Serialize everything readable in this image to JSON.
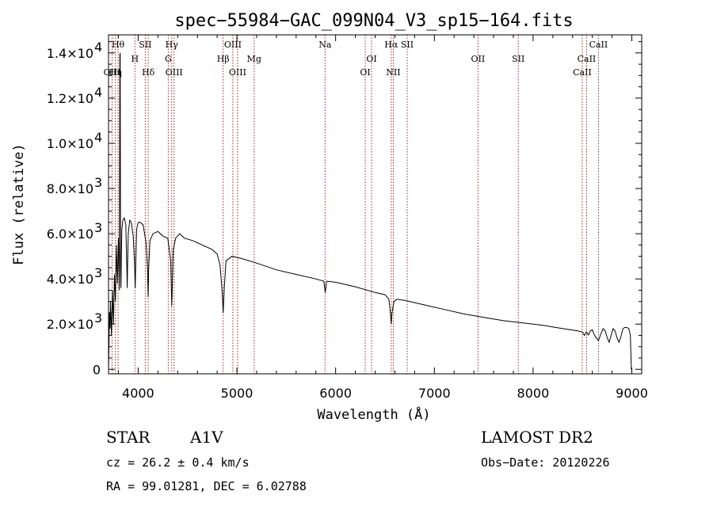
{
  "chart_data": {
    "type": "line",
    "title": "spec−55984−GAC_099N04_V3_sp15−164.fits",
    "xlabel": "Wavelength (Å)",
    "ylabel": "Flux (relative)",
    "xlim": [
      3700,
      9100
    ],
    "ylim": [
      -200,
      14800
    ],
    "x_ticks": [
      {
        "value": 4000,
        "label": "4000"
      },
      {
        "value": 5000,
        "label": "5000"
      },
      {
        "value": 6000,
        "label": "6000"
      },
      {
        "value": 7000,
        "label": "7000"
      },
      {
        "value": 8000,
        "label": "8000"
      },
      {
        "value": 9000,
        "label": "9000"
      }
    ],
    "y_ticks": [
      {
        "value": 0,
        "mant": "0",
        "exp": ""
      },
      {
        "value": 2000,
        "mant": "2.0×10",
        "exp": "3"
      },
      {
        "value": 4000,
        "mant": "4.0×10",
        "exp": "3"
      },
      {
        "value": 6000,
        "mant": "6.0×10",
        "exp": "3"
      },
      {
        "value": 8000,
        "mant": "8.0×10",
        "exp": "3"
      },
      {
        "value": 10000,
        "mant": "1.0×10",
        "exp": "4"
      },
      {
        "value": 12000,
        "mant": "1.2×10",
        "exp": "4"
      },
      {
        "value": 14000,
        "mant": "1.4×10",
        "exp": "4"
      }
    ],
    "series": [
      {
        "x": [
          3700,
          3705,
          3710,
          3715,
          3720,
          3730,
          3740,
          3750,
          3760,
          3770,
          3780,
          3790,
          3800,
          3810,
          3815,
          3818,
          3822,
          3826,
          3830,
          3835,
          3845,
          3860,
          3875,
          3885,
          3889,
          3893,
          3900,
          3915,
          3930,
          3950,
          3965,
          3970,
          3975,
          3985,
          4000,
          4020,
          4050,
          4080,
          4095,
          4101,
          4107,
          4120,
          4150,
          4200,
          4250,
          4300,
          4330,
          4340,
          4345,
          4355,
          4380,
          4420,
          4470,
          4550,
          4650,
          4750,
          4800,
          4830,
          4850,
          4861,
          4872,
          4890,
          4950,
          5050,
          5200,
          5400,
          5600,
          5800,
          5880,
          5895,
          5910,
          6000,
          6200,
          6400,
          6500,
          6540,
          6555,
          6563,
          6571,
          6590,
          6620,
          6700,
          6900,
          7100,
          7300,
          7500,
          7700,
          7900,
          8100,
          8300,
          8450,
          8500,
          8520,
          8540,
          8560,
          8580,
          8600,
          8620,
          8640,
          8662,
          8685,
          8710,
          8730,
          8750,
          8770,
          8790,
          8810,
          8830,
          8850,
          8870,
          8890,
          8910,
          8930,
          8950,
          8970,
          8985,
          8995
        ],
        "y": [
          0,
          1200,
          2500,
          1800,
          3000,
          1500,
          3500,
          2000,
          4200,
          3000,
          5500,
          3800,
          5800,
          3500,
          13900,
          14000,
          4500,
          3600,
          5000,
          6200,
          6600,
          6700,
          6400,
          4500,
          3600,
          4700,
          6000,
          6600,
          6500,
          5900,
          4500,
          3600,
          4600,
          6200,
          6500,
          6500,
          6400,
          5600,
          4400,
          3200,
          4500,
          5700,
          6000,
          6100,
          5900,
          5800,
          4800,
          2800,
          3500,
          5300,
          5800,
          6000,
          5800,
          5700,
          5500,
          5300,
          5100,
          4600,
          3500,
          2500,
          3600,
          4800,
          5000,
          4900,
          4700,
          4400,
          4200,
          4000,
          3900,
          3400,
          3900,
          3850,
          3650,
          3400,
          3300,
          3100,
          2500,
          2000,
          2500,
          3000,
          3100,
          3050,
          2850,
          2650,
          2450,
          2300,
          2150,
          2050,
          1950,
          1800,
          1700,
          1650,
          1500,
          1650,
          1520,
          1700,
          1750,
          1520,
          1400,
          1260,
          1550,
          1800,
          1700,
          1400,
          1200,
          1500,
          1800,
          1700,
          1400,
          1200,
          1450,
          1800,
          1850,
          1850,
          1800,
          1500,
          0
        ]
      }
    ],
    "line_markers": [
      {
        "wl": 3736,
        "label": "OIII",
        "row": 3
      },
      {
        "wl": 3770,
        "label": "Hη",
        "row": 3
      },
      {
        "wl": 3797,
        "label": "Hθ",
        "row": 1
      },
      {
        "wl": 3967,
        "label": "H",
        "row": 2
      },
      {
        "wl": 4072,
        "label": "SII",
        "row": 1
      },
      {
        "wl": 4102,
        "label": "Hδ",
        "row": 3
      },
      {
        "wl": 4305,
        "label": "G",
        "row": 2
      },
      {
        "wl": 4340,
        "label": "Hγ",
        "row": 1
      },
      {
        "wl": 4364,
        "label": "OIII",
        "row": 3
      },
      {
        "wl": 4861,
        "label": "Hβ",
        "row": 2
      },
      {
        "wl": 4959,
        "label": "OIII",
        "row": 1
      },
      {
        "wl": 5007,
        "label": "OIII",
        "row": 3
      },
      {
        "wl": 5175,
        "label": "Mg",
        "row": 2
      },
      {
        "wl": 5893,
        "label": "Na",
        "row": 1
      },
      {
        "wl": 6300,
        "label": "OI",
        "row": 3
      },
      {
        "wl": 6364,
        "label": "OI",
        "row": 2
      },
      {
        "wl": 6563,
        "label": "Hα",
        "row": 1
      },
      {
        "wl": 6584,
        "label": "NII",
        "row": 3
      },
      {
        "wl": 6725,
        "label": "SII",
        "row": 1
      },
      {
        "wl": 7442,
        "label": "OII",
        "row": 2
      },
      {
        "wl": 7850,
        "label": "SII",
        "row": 2
      },
      {
        "wl": 8498,
        "label": "CaII",
        "row": 3
      },
      {
        "wl": 8542,
        "label": "CaII",
        "row": 2
      },
      {
        "wl": 8662,
        "label": "CaII",
        "row": 1
      }
    ]
  },
  "info": {
    "object_class": "STAR",
    "subclass": "A1V",
    "survey": "LAMOST DR2",
    "cz": "cz = 26.2 ± 0.4 km/s",
    "obs_date": "Obs−Date: 20120226",
    "coords": "RA =  99.01281, DEC =   6.02788"
  }
}
